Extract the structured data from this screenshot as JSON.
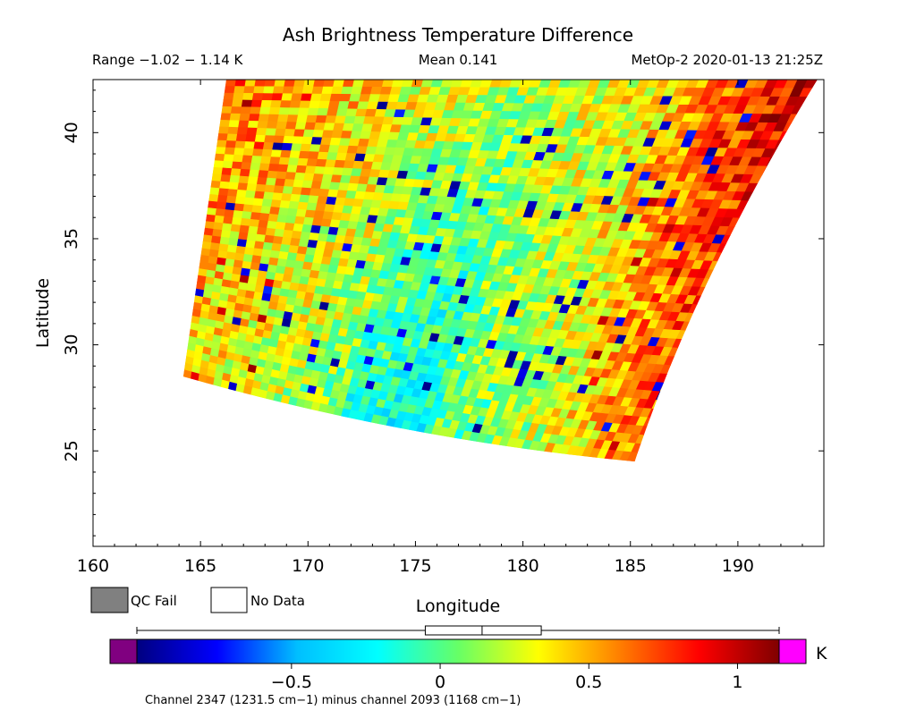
{
  "chart_data": {
    "type": "heatmap",
    "title": "Ash Brightness Temperature Difference",
    "range_text": "Range −1.02 − 1.14 K",
    "mean_text": "Mean 0.141",
    "source_text": "MetOp-2 2020-01-13 21:25Z",
    "xlabel": "Longitude",
    "ylabel": "Latitude",
    "xlim": [
      160,
      194
    ],
    "ylim": [
      20.5,
      42.5
    ],
    "xticks": [
      160,
      165,
      170,
      175,
      180,
      185,
      190
    ],
    "yticks": [
      25,
      30,
      35,
      40
    ],
    "grid": false,
    "swath_corners": {
      "top_left": [
        166.2,
        42.5
      ],
      "top_right": [
        193.7,
        42.5
      ],
      "bottom_right": [
        185.2,
        24.5
      ],
      "bottom_left": [
        164.2,
        28.5
      ]
    },
    "legend": {
      "qc_fail_label": "QC Fail",
      "qc_fail_color": "#808080",
      "no_data_label": "No Data",
      "no_data_color": "#ffffff"
    },
    "colorbar": {
      "min": -1.02,
      "max": 1.14,
      "ticks": [
        -0.5,
        0,
        0.5,
        1
      ],
      "tick_labels": [
        "−0.5",
        "0",
        "0.5",
        "1"
      ],
      "unit": "K",
      "under_color": "#800080",
      "over_color": "#ff00ff",
      "colormap": [
        "#000080",
        "#0000ff",
        "#00bfff",
        "#00ffff",
        "#66ff66",
        "#ffff00",
        "#ff8000",
        "#ff0000",
        "#800000"
      ],
      "caption": "Channel 2347 (1231.5 cm−1) minus channel 2093 (1168 cm−1)"
    },
    "boxplot": {
      "min": -1.02,
      "q1": -0.05,
      "median": 0.141,
      "q3": 0.34,
      "max": 1.14
    }
  }
}
